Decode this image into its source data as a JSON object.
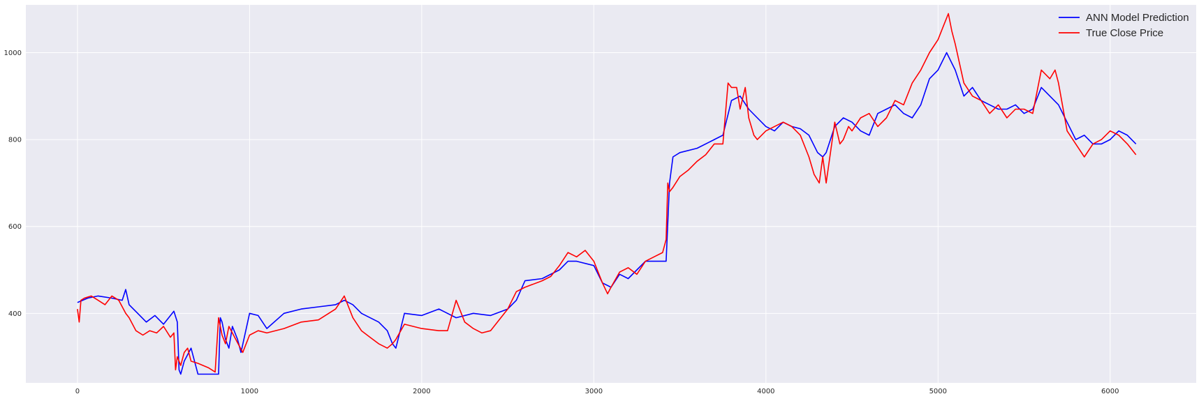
{
  "chart_data": {
    "type": "line",
    "title": "",
    "xlabel": "",
    "ylabel": "",
    "xlim": [
      -300,
      6500
    ],
    "ylim": [
      240,
      1110
    ],
    "xticks": [
      0,
      1000,
      2000,
      3000,
      4000,
      5000,
      6000
    ],
    "yticks": [
      400,
      600,
      800,
      1000
    ],
    "grid": true,
    "legend_position": "top-right",
    "series": [
      {
        "name": "ANN Model Prediction",
        "color": "#0000ff",
        "x": [
          0,
          30,
          60,
          120,
          200,
          260,
          280,
          300,
          350,
          400,
          450,
          500,
          560,
          580,
          590,
          600,
          620,
          660,
          700,
          750,
          800,
          820,
          830,
          840,
          860,
          880,
          900,
          930,
          950,
          1000,
          1050,
          1100,
          1200,
          1300,
          1400,
          1500,
          1550,
          1600,
          1650,
          1700,
          1750,
          1800,
          1830,
          1850,
          1900,
          2000,
          2100,
          2200,
          2300,
          2400,
          2500,
          2550,
          2600,
          2700,
          2800,
          2850,
          2900,
          3000,
          3050,
          3100,
          3150,
          3200,
          3250,
          3300,
          3400,
          3420,
          3440,
          3460,
          3500,
          3600,
          3700,
          3750,
          3800,
          3850,
          3900,
          3950,
          4000,
          4050,
          4100,
          4150,
          4200,
          4250,
          4300,
          4330,
          4350,
          4400,
          4450,
          4500,
          4550,
          4600,
          4650,
          4700,
          4750,
          4800,
          4850,
          4900,
          4950,
          5000,
          5050,
          5100,
          5150,
          5200,
          5250,
          5300,
          5350,
          5400,
          5450,
          5500,
          5550,
          5600,
          5650,
          5700,
          5750,
          5800,
          5850,
          5900,
          5950,
          6000,
          6050,
          6100,
          6150
        ],
        "y": [
          425,
          430,
          435,
          440,
          435,
          430,
          455,
          420,
          400,
          380,
          395,
          375,
          405,
          380,
          270,
          260,
          290,
          320,
          260,
          260,
          260,
          260,
          390,
          380,
          340,
          320,
          370,
          340,
          310,
          400,
          395,
          365,
          400,
          410,
          415,
          420,
          430,
          420,
          400,
          390,
          380,
          360,
          330,
          320,
          400,
          395,
          410,
          390,
          400,
          395,
          410,
          430,
          475,
          480,
          500,
          520,
          520,
          510,
          470,
          460,
          490,
          480,
          500,
          520,
          520,
          520,
          700,
          760,
          770,
          780,
          800,
          810,
          890,
          900,
          870,
          850,
          830,
          820,
          840,
          830,
          825,
          810,
          770,
          760,
          770,
          830,
          850,
          840,
          820,
          810,
          860,
          870,
          880,
          860,
          850,
          880,
          940,
          960,
          1000,
          960,
          900,
          920,
          890,
          880,
          870,
          870,
          880,
          860,
          870,
          920,
          900,
          880,
          840,
          800,
          810,
          790,
          790,
          800,
          820,
          810,
          790
        ]
      },
      {
        "name": "True Close Price",
        "color": "#ff0000",
        "x": [
          0,
          10,
          20,
          40,
          80,
          120,
          160,
          200,
          240,
          280,
          300,
          340,
          380,
          420,
          460,
          500,
          540,
          560,
          570,
          580,
          600,
          620,
          640,
          660,
          700,
          760,
          800,
          820,
          840,
          860,
          880,
          920,
          960,
          1000,
          1050,
          1100,
          1200,
          1300,
          1400,
          1500,
          1550,
          1600,
          1650,
          1700,
          1750,
          1800,
          1830,
          1850,
          1900,
          2000,
          2100,
          2150,
          2200,
          2250,
          2300,
          2350,
          2400,
          2500,
          2550,
          2600,
          2700,
          2750,
          2800,
          2850,
          2900,
          2950,
          3000,
          3050,
          3080,
          3100,
          3150,
          3200,
          3250,
          3300,
          3350,
          3400,
          3420,
          3430,
          3440,
          3460,
          3500,
          3550,
          3600,
          3650,
          3700,
          3750,
          3780,
          3800,
          3830,
          3850,
          3880,
          3900,
          3930,
          3950,
          4000,
          4050,
          4100,
          4150,
          4200,
          4250,
          4280,
          4310,
          4330,
          4350,
          4400,
          4430,
          4450,
          4480,
          4500,
          4550,
          4600,
          4650,
          4700,
          4750,
          4800,
          4850,
          4900,
          4950,
          5000,
          5030,
          5060,
          5080,
          5100,
          5150,
          5200,
          5250,
          5300,
          5350,
          5400,
          5450,
          5500,
          5550,
          5600,
          5650,
          5680,
          5700,
          5750,
          5800,
          5850,
          5900,
          5950,
          6000,
          6050,
          6100,
          6150
        ],
        "y": [
          410,
          380,
          430,
          435,
          440,
          430,
          420,
          440,
          430,
          400,
          390,
          360,
          350,
          360,
          355,
          370,
          345,
          355,
          270,
          300,
          280,
          310,
          320,
          290,
          285,
          275,
          265,
          390,
          350,
          330,
          370,
          340,
          310,
          350,
          360,
          355,
          365,
          380,
          385,
          410,
          440,
          390,
          360,
          345,
          330,
          320,
          330,
          340,
          375,
          365,
          360,
          360,
          430,
          380,
          365,
          355,
          360,
          410,
          450,
          460,
          475,
          485,
          510,
          540,
          530,
          545,
          520,
          470,
          445,
          460,
          495,
          505,
          490,
          520,
          530,
          540,
          570,
          700,
          680,
          690,
          715,
          730,
          750,
          765,
          790,
          790,
          930,
          920,
          920,
          870,
          920,
          850,
          810,
          800,
          820,
          830,
          840,
          830,
          810,
          760,
          720,
          700,
          760,
          700,
          840,
          790,
          800,
          830,
          820,
          850,
          860,
          830,
          850,
          890,
          880,
          930,
          960,
          1000,
          1030,
          1060,
          1090,
          1050,
          1020,
          930,
          900,
          890,
          860,
          880,
          850,
          870,
          870,
          860,
          960,
          940,
          960,
          930,
          820,
          790,
          760,
          790,
          800,
          820,
          810,
          790,
          765
        ]
      }
    ]
  }
}
